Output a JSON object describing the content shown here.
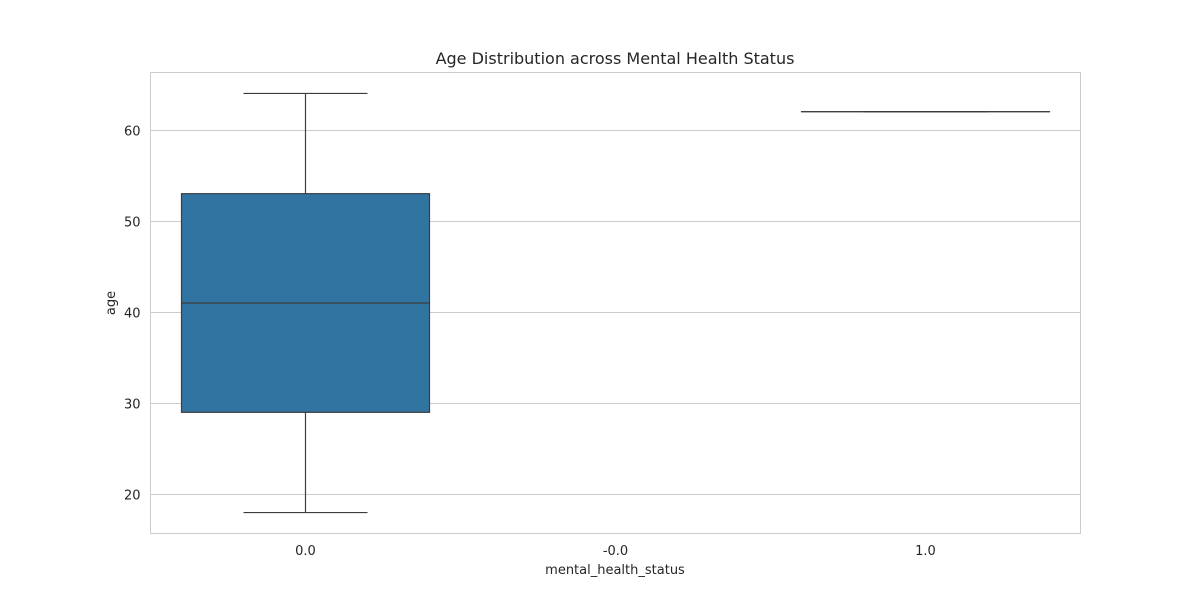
{
  "chart_data": {
    "type": "box",
    "title": "Age Distribution across Mental Health Status",
    "xlabel": "mental_health_status",
    "ylabel": "age",
    "categories": [
      "0.0",
      "-0.0",
      "1.0"
    ],
    "ylim": [
      15.7,
      66.3
    ],
    "yticks": [
      20,
      30,
      40,
      50,
      60
    ],
    "grid": true,
    "box_color": "#3274a1",
    "line_color": "#3d3d3d",
    "grid_color": "#cccccc",
    "boxes": [
      {
        "category": "0.0",
        "whisker_low": 18,
        "q1": 29,
        "median": 41,
        "q3": 53,
        "whisker_high": 64
      },
      {
        "category": "1.0",
        "whisker_low": 62,
        "q1": 62,
        "median": 62,
        "q3": 62,
        "whisker_high": 62
      }
    ]
  }
}
